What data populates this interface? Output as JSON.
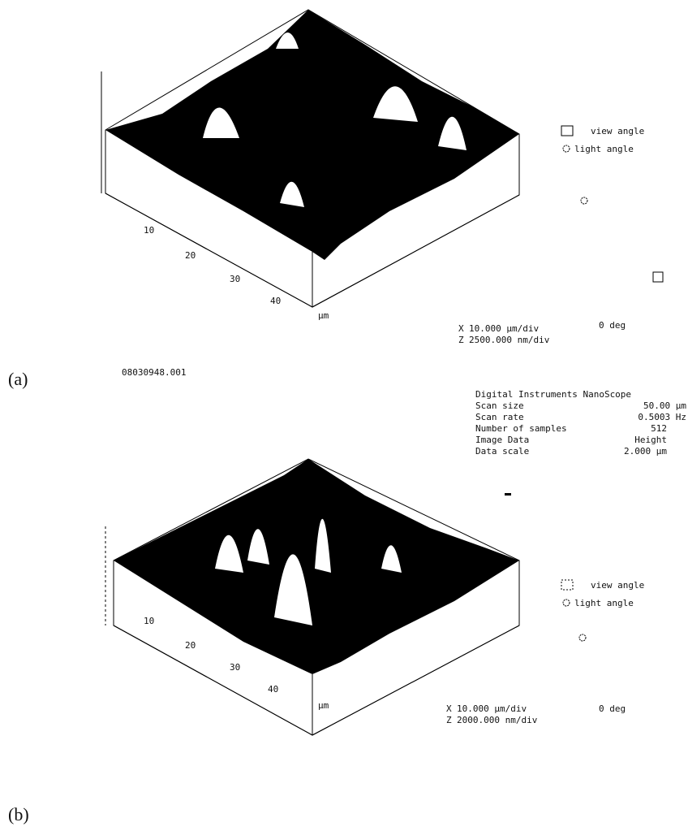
{
  "panels": [
    {
      "label": "(a)",
      "ticks": [
        "10",
        "20",
        "30",
        "40"
      ],
      "unit": "μm",
      "view_angle": "view angle",
      "light_angle": "light angle",
      "x_scale": [
        "X",
        "10.000 μm/div"
      ],
      "z_scale": [
        "Z",
        "2500.000 nm/div"
      ],
      "rotation": "0 deg"
    },
    {
      "label": "(b)",
      "ticks": [
        "10",
        "20",
        "30",
        "40"
      ],
      "unit": "μm",
      "view_angle": "view angle",
      "light_angle": "light angle",
      "x_scale": [
        "X",
        "10.000 μm/div"
      ],
      "z_scale": [
        "Z",
        "2000.000 nm/div"
      ],
      "rotation": "0 deg"
    }
  ],
  "file_name": "08030948.001",
  "info": {
    "title": "Digital Instruments NanoScope",
    "rows": [
      [
        "Scan size",
        "50.00 μm"
      ],
      [
        "Scan rate",
        "0.5003 Hz"
      ],
      [
        "Number of samples",
        512
      ],
      [
        "Image Data",
        "Height"
      ],
      [
        "Data scale",
        "2.000 μm"
      ]
    ]
  }
}
